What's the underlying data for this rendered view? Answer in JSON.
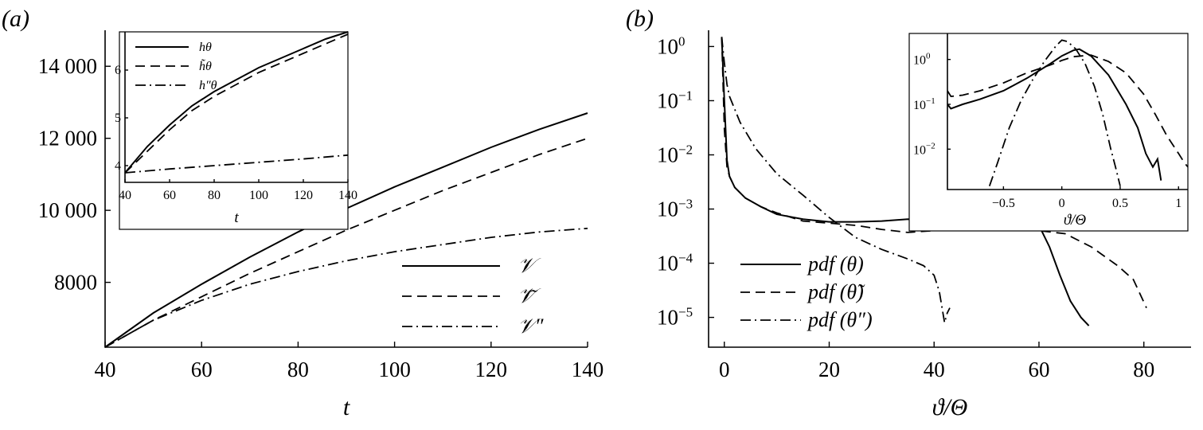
{
  "panel_a": {
    "label": "(a)",
    "chart_data": {
      "type": "line",
      "xlabel": "t",
      "ylabel": "",
      "xlim": [
        40,
        140
      ],
      "ylim": [
        6200,
        15000
      ],
      "xticks": [
        40,
        60,
        80,
        100,
        120,
        140
      ],
      "xtick_labels": [
        "40",
        "60",
        "80",
        "100",
        "120",
        "140"
      ],
      "yticks": [
        8000,
        10000,
        12000,
        14000
      ],
      "ytick_labels": [
        "8000",
        "10 000",
        "12 000",
        "14 000"
      ],
      "legend_position": "bottom-right",
      "series": [
        {
          "name": "𝒱",
          "style": "solid",
          "x": [
            40,
            50,
            60,
            70,
            80,
            90,
            100,
            110,
            120,
            130,
            140
          ],
          "y": [
            6200,
            7150,
            7950,
            8700,
            9400,
            10050,
            10650,
            11200,
            11750,
            12250,
            12700
          ]
        },
        {
          "name": "𝒱̃",
          "style": "dashed",
          "x": [
            40,
            50,
            60,
            70,
            80,
            90,
            100,
            110,
            120,
            130,
            140
          ],
          "y": [
            6200,
            6950,
            7600,
            8250,
            8850,
            9450,
            10000,
            10550,
            11050,
            11550,
            12000
          ]
        },
        {
          "name": "𝒱″",
          "style": "dashdot",
          "x": [
            40,
            50,
            60,
            70,
            80,
            90,
            100,
            110,
            120,
            130,
            140
          ],
          "y": [
            6200,
            6950,
            7500,
            7950,
            8300,
            8600,
            8850,
            9050,
            9250,
            9400,
            9500
          ]
        }
      ]
    },
    "inset": {
      "chart_data": {
        "type": "line",
        "xlabel": "t",
        "xlim": [
          40,
          140
        ],
        "ylim": [
          3.65,
          6.8
        ],
        "xticks": [
          40,
          60,
          80,
          100,
          120,
          140
        ],
        "xtick_labels": [
          "40",
          "60",
          "80",
          "100",
          "120",
          "140"
        ],
        "yticks": [
          4,
          5,
          6
        ],
        "ytick_labels": [
          "4",
          "5",
          "6"
        ],
        "legend_position": "top-left",
        "series": [
          {
            "name": "hθ",
            "style": "solid",
            "x": [
              40,
              50,
              60,
              70,
              80,
              90,
              100,
              110,
              120,
              130,
              140
            ],
            "y": [
              3.85,
              4.4,
              4.85,
              5.25,
              5.55,
              5.8,
              6.05,
              6.25,
              6.45,
              6.65,
              6.85
            ]
          },
          {
            "name": "h̃θ",
            "style": "dashed",
            "x": [
              40,
              50,
              60,
              70,
              80,
              90,
              100,
              110,
              120,
              130,
              140
            ],
            "y": [
              3.85,
              4.3,
              4.75,
              5.15,
              5.45,
              5.7,
              5.95,
              6.15,
              6.35,
              6.55,
              6.75
            ]
          },
          {
            "name": "h″θ",
            "style": "dashdot",
            "x": [
              40,
              60,
              80,
              100,
              120,
              140
            ],
            "y": [
              3.85,
              3.93,
              4.0,
              4.07,
              4.14,
              4.22
            ]
          }
        ]
      }
    }
  },
  "panel_b": {
    "label": "(b)",
    "chart_data": {
      "type": "line",
      "xlabel": "ϑ/Θ",
      "ylabel": "",
      "xscale": "linear",
      "yscale": "log",
      "xlim": [
        -3,
        89
      ],
      "ylim_log10": [
        -5.55,
        0.3
      ],
      "xticks": [
        0,
        20,
        40,
        60,
        80
      ],
      "xtick_labels": [
        "0",
        "20",
        "40",
        "60",
        "80"
      ],
      "yticks_log10": [
        -5,
        -4,
        -3,
        -2,
        -1,
        0
      ],
      "ytick_labels": [
        [
          "10",
          "−5"
        ],
        [
          "10",
          "−4"
        ],
        [
          "10",
          "−3"
        ],
        [
          "10",
          "−2"
        ],
        [
          "10",
          "−1"
        ],
        [
          "10",
          "0"
        ]
      ],
      "legend_position": "bottom-left",
      "series": [
        {
          "name": "pdf (θ)",
          "style": "solid",
          "x": [
            -0.5,
            0,
            0.5,
            1,
            2,
            4,
            7,
            10,
            15,
            20,
            25,
            30,
            35,
            40,
            45,
            50,
            53,
            56,
            60,
            62,
            64,
            66,
            68,
            69.5
          ],
          "y": [
            1.5,
            0.1,
            0.008,
            0.004,
            0.0025,
            0.0016,
            0.0011,
            0.0008,
            0.00065,
            0.00058,
            0.00058,
            0.0006,
            0.00065,
            0.00062,
            0.00062,
            0.0007,
            0.0008,
            0.00075,
            0.0005,
            0.0002,
            6e-05,
            2e-05,
            1e-05,
            7e-06
          ]
        },
        {
          "name": "pdf (θ̃)",
          "style": "dashed",
          "x": [
            -0.5,
            0,
            0.5,
            1,
            2,
            4,
            7,
            10,
            15,
            20,
            25,
            30,
            35,
            40,
            45,
            50,
            55,
            60,
            65,
            70,
            75,
            78,
            80.5
          ],
          "y": [
            1.5,
            0.03,
            0.006,
            0.004,
            0.0025,
            0.0016,
            0.0011,
            0.00085,
            0.0006,
            0.00055,
            0.0005,
            0.00042,
            0.00037,
            0.0004,
            0.00047,
            0.0005,
            0.00045,
            0.0004,
            0.00035,
            0.0002,
            9e-05,
            5e-05,
            1.5e-05
          ]
        },
        {
          "name": "pdf (θ″)",
          "style": "dashdot",
          "x": [
            -0.5,
            0,
            0.5,
            1,
            3,
            6,
            10,
            15,
            20,
            25,
            30,
            35,
            38,
            40,
            41,
            42,
            42.5,
            43
          ],
          "y": [
            1.5,
            0.5,
            0.2,
            0.12,
            0.04,
            0.013,
            0.0045,
            0.0018,
            0.0007,
            0.0003,
            0.00018,
            0.00012,
            9e-05,
            6e-05,
            3e-05,
            8e-06,
            1.2e-05,
            1.5e-05
          ]
        }
      ]
    },
    "inset": {
      "chart_data": {
        "type": "line",
        "xlabel": "ϑ/Θ",
        "xlim": [
          -0.98,
          1.08
        ],
        "ylim_log10": [
          -2.9,
          0.58
        ],
        "xticks": [
          -0.5,
          0,
          0.5,
          1
        ],
        "xtick_labels": [
          "−0.5",
          "0",
          "0.5",
          "1"
        ],
        "yticks_log10": [
          -2,
          -1,
          0
        ],
        "ytick_labels": [
          [
            "10",
            "−2"
          ],
          [
            "10",
            "−1"
          ],
          [
            "10",
            "0"
          ]
        ],
        "series": [
          {
            "name": "pdf (θ)",
            "style": "solid",
            "x": [
              -0.98,
              -0.95,
              -0.85,
              -0.7,
              -0.5,
              -0.3,
              -0.1,
              0,
              0.1,
              0.15,
              0.25,
              0.4,
              0.55,
              0.65,
              0.72,
              0.78,
              0.82,
              0.85
            ],
            "y": [
              0.1,
              0.08,
              0.1,
              0.13,
              0.2,
              0.38,
              0.8,
              1.2,
              1.6,
              1.7,
              1.2,
              0.45,
              0.1,
              0.03,
              0.008,
              0.004,
              0.006,
              0.002
            ]
          },
          {
            "name": "pdf (θ̃)",
            "style": "dashed",
            "x": [
              -0.98,
              -0.95,
              -0.85,
              -0.7,
              -0.5,
              -0.3,
              -0.1,
              0,
              0.1,
              0.25,
              0.4,
              0.55,
              0.7,
              0.8,
              0.9,
              1.0,
              1.05,
              1.08
            ],
            "y": [
              0.2,
              0.15,
              0.16,
              0.2,
              0.3,
              0.5,
              0.75,
              0.95,
              1.15,
              1.25,
              0.9,
              0.5,
              0.17,
              0.06,
              0.02,
              0.008,
              0.005,
              0.004
            ]
          },
          {
            "name": "pdf (θ″)",
            "style": "dashdot",
            "x": [
              -0.62,
              -0.55,
              -0.45,
              -0.35,
              -0.25,
              -0.15,
              -0.05,
              0.0,
              0.05,
              0.12,
              0.2,
              0.28,
              0.35,
              0.42,
              0.46,
              0.5
            ],
            "y": [
              0.0015,
              0.005,
              0.03,
              0.12,
              0.35,
              0.9,
              2.0,
              2.7,
              2.5,
              1.7,
              0.8,
              0.25,
              0.06,
              0.01,
              0.004,
              0.0015
            ]
          }
        ]
      }
    }
  }
}
